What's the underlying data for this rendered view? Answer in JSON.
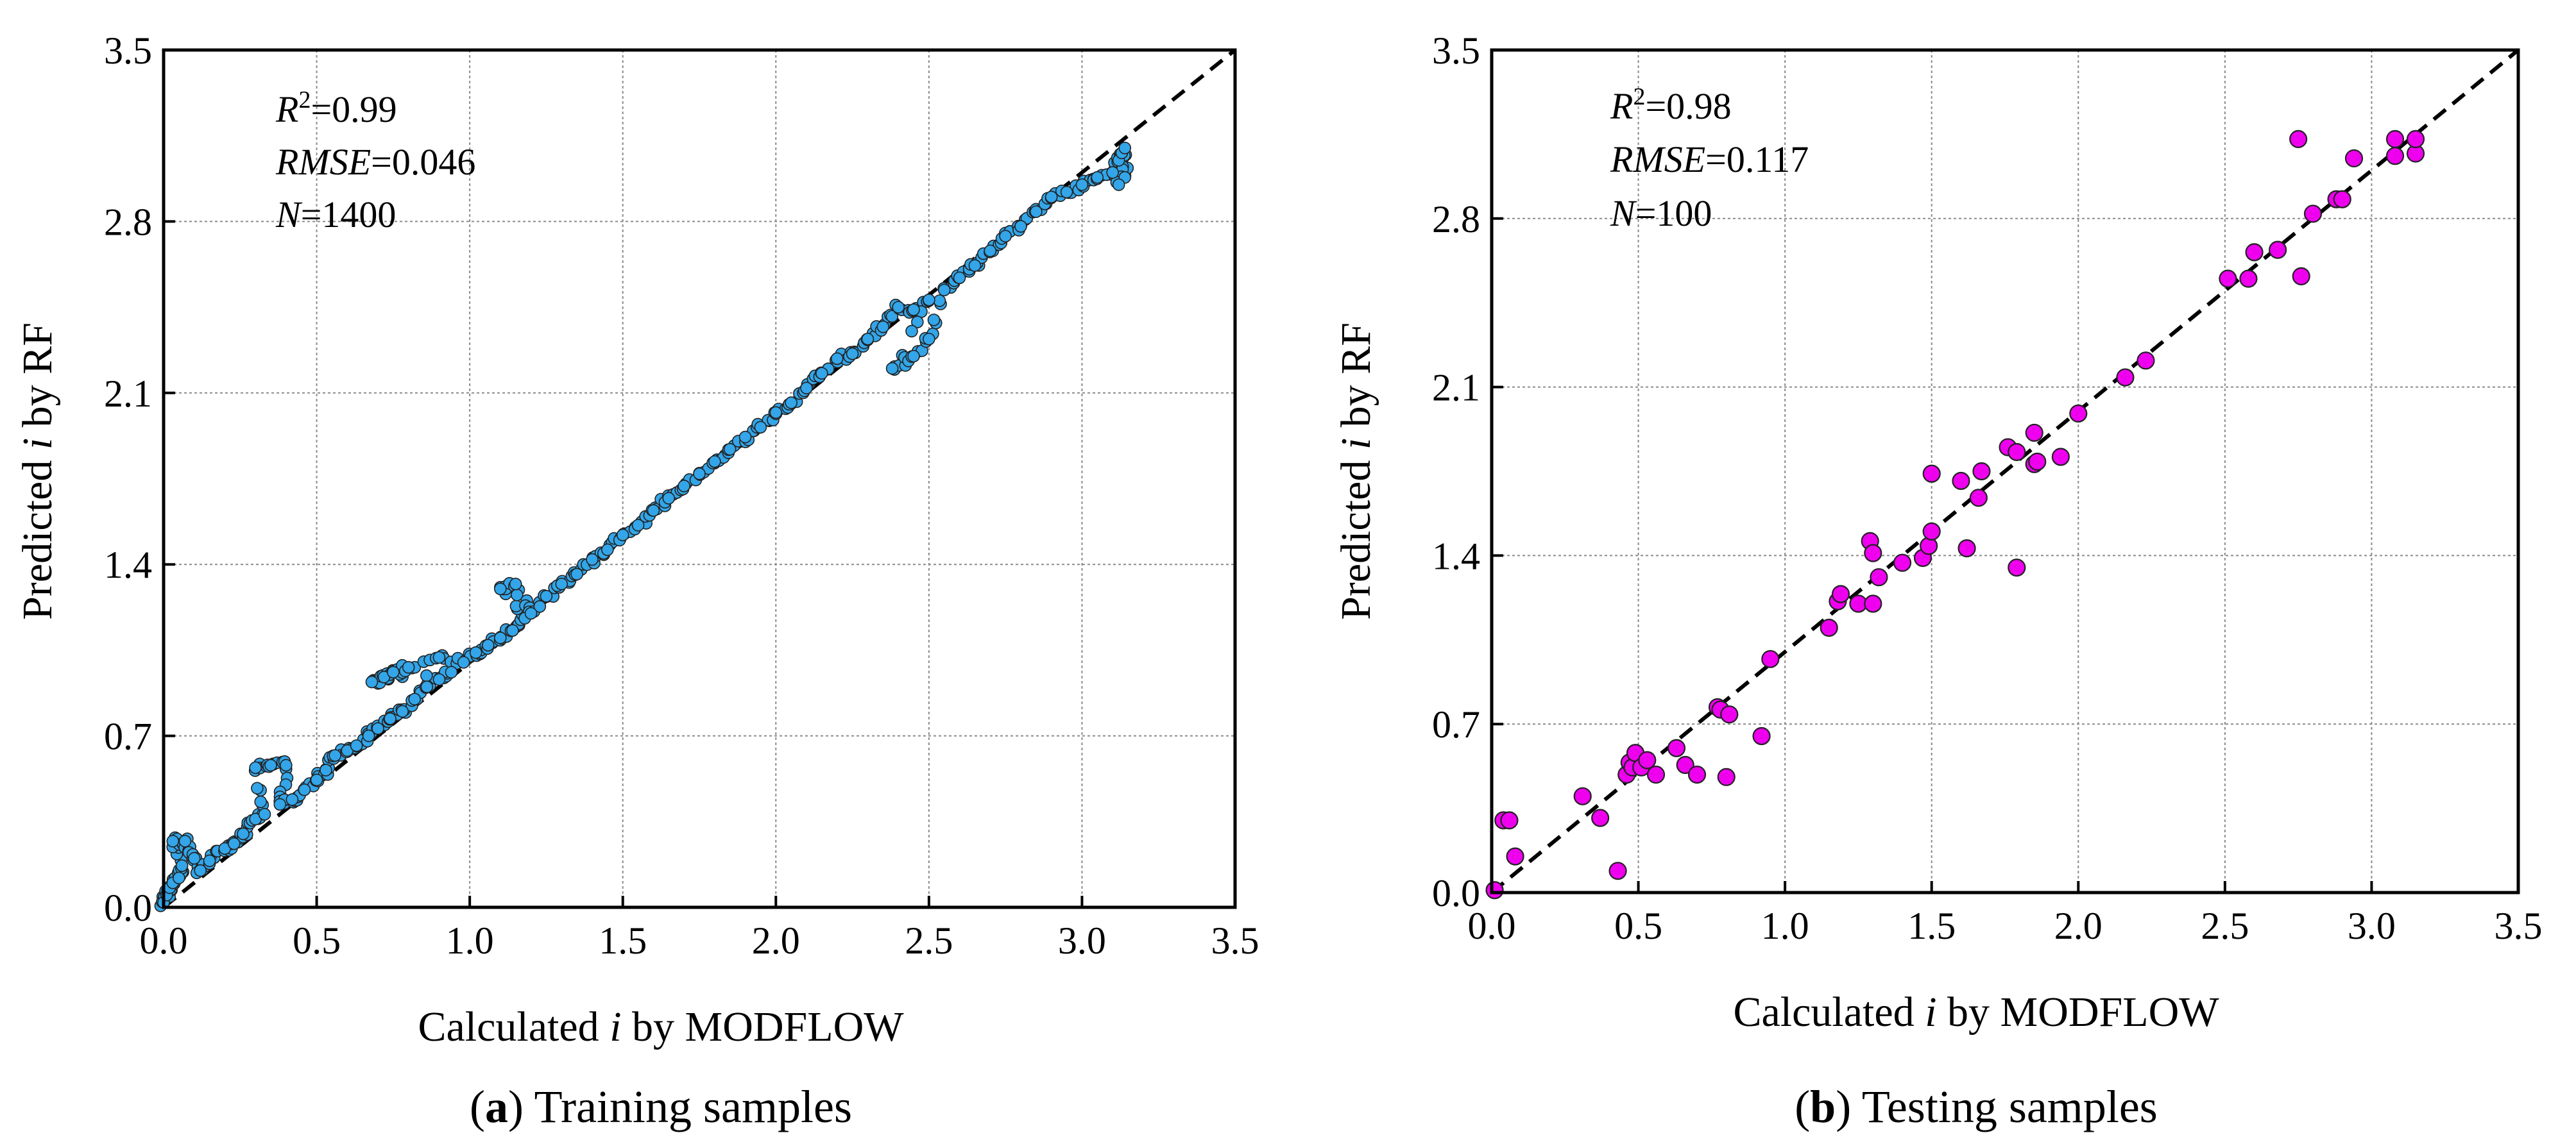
{
  "chart_data": [
    {
      "type": "scatter",
      "panel_letter": "a",
      "caption_open": "(",
      "caption_close": ") Training samples",
      "xlabel_pre": "Calculated ",
      "xlabel_var": "i",
      "xlabel_post": " by MODFLOW",
      "ylabel_pre": "Predicted ",
      "ylabel_var": "i",
      "ylabel_post": " by RF",
      "xlim": [
        0,
        3.5
      ],
      "ylim": [
        0,
        3.5
      ],
      "xticks": [
        "0.0",
        "0.5",
        "1.0",
        "1.5",
        "2.0",
        "2.5",
        "3.0",
        "3.5"
      ],
      "yticks": [
        "0.0",
        "0.7",
        "1.4",
        "2.1",
        "2.8",
        "3.5"
      ],
      "stats": [
        {
          "var": "R",
          "sup": "2",
          "value": "=0.99"
        },
        {
          "var": "RMSE",
          "sup": "",
          "value": "=0.046"
        },
        {
          "var": "N",
          "sup": "",
          "value": "=1400"
        }
      ],
      "marker_color": "#33a5e8",
      "reference_line": {
        "style": "dashed",
        "from": [
          0,
          0
        ],
        "to": [
          3.5,
          3.5
        ]
      },
      "series_summary": "1400 points tightly following y = x from 0.0 to 3.15, with slight over-prediction at low values (0.0–0.9) and a secondary branch near 2.2–2.45",
      "points": [
        [
          0.0,
          0.02
        ],
        [
          0.01,
          0.05
        ],
        [
          0.02,
          0.08
        ],
        [
          0.03,
          0.1
        ],
        [
          0.05,
          0.12
        ],
        [
          0.06,
          0.17
        ],
        [
          0.03,
          0.27
        ],
        [
          0.07,
          0.27
        ],
        [
          0.1,
          0.2
        ],
        [
          0.12,
          0.15
        ],
        [
          0.15,
          0.19
        ],
        [
          0.2,
          0.24
        ],
        [
          0.23,
          0.26
        ],
        [
          0.26,
          0.3
        ],
        [
          0.3,
          0.36
        ],
        [
          0.33,
          0.38
        ],
        [
          0.3,
          0.57
        ],
        [
          0.35,
          0.58
        ],
        [
          0.4,
          0.58
        ],
        [
          0.38,
          0.42
        ],
        [
          0.42,
          0.44
        ],
        [
          0.46,
          0.48
        ],
        [
          0.5,
          0.52
        ],
        [
          0.53,
          0.56
        ],
        [
          0.56,
          0.62
        ],
        [
          0.6,
          0.64
        ],
        [
          0.63,
          0.66
        ],
        [
          0.67,
          0.7
        ],
        [
          0.7,
          0.73
        ],
        [
          0.74,
          0.77
        ],
        [
          0.78,
          0.8
        ],
        [
          0.82,
          0.85
        ],
        [
          0.86,
          0.9
        ],
        [
          0.9,
          0.93
        ],
        [
          0.94,
          0.96
        ],
        [
          0.68,
          0.92
        ],
        [
          0.72,
          0.94
        ],
        [
          0.75,
          0.96
        ],
        [
          0.8,
          0.98
        ],
        [
          0.9,
          1.02
        ],
        [
          0.98,
          1.0
        ],
        [
          1.02,
          1.04
        ],
        [
          1.06,
          1.07
        ],
        [
          1.1,
          1.1
        ],
        [
          1.14,
          1.13
        ],
        [
          1.18,
          1.18
        ],
        [
          1.1,
          1.3
        ],
        [
          1.15,
          1.32
        ],
        [
          1.2,
          1.2
        ],
        [
          1.25,
          1.27
        ],
        [
          1.3,
          1.32
        ],
        [
          1.35,
          1.36
        ],
        [
          1.4,
          1.42
        ],
        [
          1.45,
          1.46
        ],
        [
          1.5,
          1.52
        ],
        [
          1.55,
          1.56
        ],
        [
          1.6,
          1.62
        ],
        [
          1.65,
          1.67
        ],
        [
          1.7,
          1.72
        ],
        [
          1.75,
          1.77
        ],
        [
          1.8,
          1.82
        ],
        [
          1.85,
          1.87
        ],
        [
          1.9,
          1.92
        ],
        [
          1.95,
          1.96
        ],
        [
          2.0,
          2.02
        ],
        [
          2.05,
          2.06
        ],
        [
          2.1,
          2.12
        ],
        [
          2.15,
          2.18
        ],
        [
          2.2,
          2.24
        ],
        [
          2.25,
          2.26
        ],
        [
          2.3,
          2.32
        ],
        [
          2.35,
          2.37
        ],
        [
          2.4,
          2.45
        ],
        [
          2.45,
          2.44
        ],
        [
          2.5,
          2.48
        ],
        [
          2.38,
          2.2
        ],
        [
          2.45,
          2.25
        ],
        [
          2.5,
          2.32
        ],
        [
          2.55,
          2.52
        ],
        [
          2.6,
          2.57
        ],
        [
          2.65,
          2.62
        ],
        [
          2.7,
          2.68
        ],
        [
          2.75,
          2.74
        ],
        [
          2.8,
          2.78
        ],
        [
          2.85,
          2.84
        ],
        [
          2.9,
          2.9
        ],
        [
          2.95,
          2.92
        ],
        [
          3.0,
          2.95
        ],
        [
          3.05,
          2.98
        ],
        [
          3.1,
          3.0
        ],
        [
          3.12,
          3.05
        ],
        [
          3.13,
          3.08
        ],
        [
          3.14,
          2.98
        ],
        [
          3.14,
          3.1
        ],
        [
          3.12,
          2.95
        ]
      ]
    },
    {
      "type": "scatter",
      "panel_letter": "b",
      "caption_open": "(",
      "caption_close": ") Testing samples",
      "xlabel_pre": "Calculated ",
      "xlabel_var": "i",
      "xlabel_post": " by MODFLOW",
      "ylabel_pre": "Predicted ",
      "ylabel_var": "i",
      "ylabel_post": " by RF",
      "xlim": [
        0,
        3.5
      ],
      "ylim": [
        0,
        3.5
      ],
      "xticks": [
        "0.0",
        "0.5",
        "1.0",
        "1.5",
        "2.0",
        "2.5",
        "3.0",
        "3.5"
      ],
      "yticks": [
        "0.0",
        "0.7",
        "1.4",
        "2.1",
        "2.8",
        "3.5"
      ],
      "stats": [
        {
          "var": "R",
          "sup": "2",
          "value": "=0.98"
        },
        {
          "var": "RMSE",
          "sup": "",
          "value": "=0.117"
        },
        {
          "var": "N",
          "sup": "",
          "value": "=100"
        }
      ],
      "marker_color": "#ee00ee",
      "reference_line": {
        "style": "dashed",
        "from": [
          0,
          0
        ],
        "to": [
          3.5,
          3.5
        ]
      },
      "points": [
        [
          0.01,
          0.01
        ],
        [
          0.04,
          0.3
        ],
        [
          0.06,
          0.3
        ],
        [
          0.08,
          0.15
        ],
        [
          0.31,
          0.4
        ],
        [
          0.37,
          0.31
        ],
        [
          0.43,
          0.09
        ],
        [
          0.46,
          0.49
        ],
        [
          0.47,
          0.54
        ],
        [
          0.48,
          0.52
        ],
        [
          0.49,
          0.58
        ],
        [
          0.51,
          0.52
        ],
        [
          0.53,
          0.55
        ],
        [
          0.56,
          0.49
        ],
        [
          0.63,
          0.6
        ],
        [
          0.66,
          0.53
        ],
        [
          0.7,
          0.49
        ],
        [
          0.77,
          0.77
        ],
        [
          0.78,
          0.76
        ],
        [
          0.8,
          0.48
        ],
        [
          0.81,
          0.74
        ],
        [
          0.92,
          0.65
        ],
        [
          0.95,
          0.97
        ],
        [
          1.15,
          1.1
        ],
        [
          1.18,
          1.21
        ],
        [
          1.19,
          1.24
        ],
        [
          1.25,
          1.2
        ],
        [
          1.29,
          1.46
        ],
        [
          1.3,
          1.41
        ],
        [
          1.3,
          1.2
        ],
        [
          1.32,
          1.31
        ],
        [
          1.4,
          1.37
        ],
        [
          1.47,
          1.39
        ],
        [
          1.49,
          1.44
        ],
        [
          1.5,
          1.5
        ],
        [
          1.5,
          1.74
        ],
        [
          1.6,
          1.71
        ],
        [
          1.62,
          1.43
        ],
        [
          1.66,
          1.64
        ],
        [
          1.67,
          1.75
        ],
        [
          1.76,
          1.85
        ],
        [
          1.79,
          1.83
        ],
        [
          1.79,
          1.35
        ],
        [
          1.85,
          1.91
        ],
        [
          1.85,
          1.78
        ],
        [
          1.86,
          1.79
        ],
        [
          1.94,
          1.81
        ],
        [
          2.0,
          1.99
        ],
        [
          2.16,
          2.14
        ],
        [
          2.23,
          2.21
        ],
        [
          2.51,
          2.55
        ],
        [
          2.58,
          2.55
        ],
        [
          2.6,
          2.66
        ],
        [
          2.68,
          2.67
        ],
        [
          2.75,
          3.13
        ],
        [
          2.76,
          2.56
        ],
        [
          2.8,
          2.82
        ],
        [
          2.88,
          2.88
        ],
        [
          2.9,
          2.88
        ],
        [
          2.94,
          3.05
        ],
        [
          3.08,
          3.06
        ],
        [
          3.08,
          3.13
        ],
        [
          3.15,
          3.07
        ],
        [
          3.15,
          3.13
        ]
      ]
    }
  ]
}
